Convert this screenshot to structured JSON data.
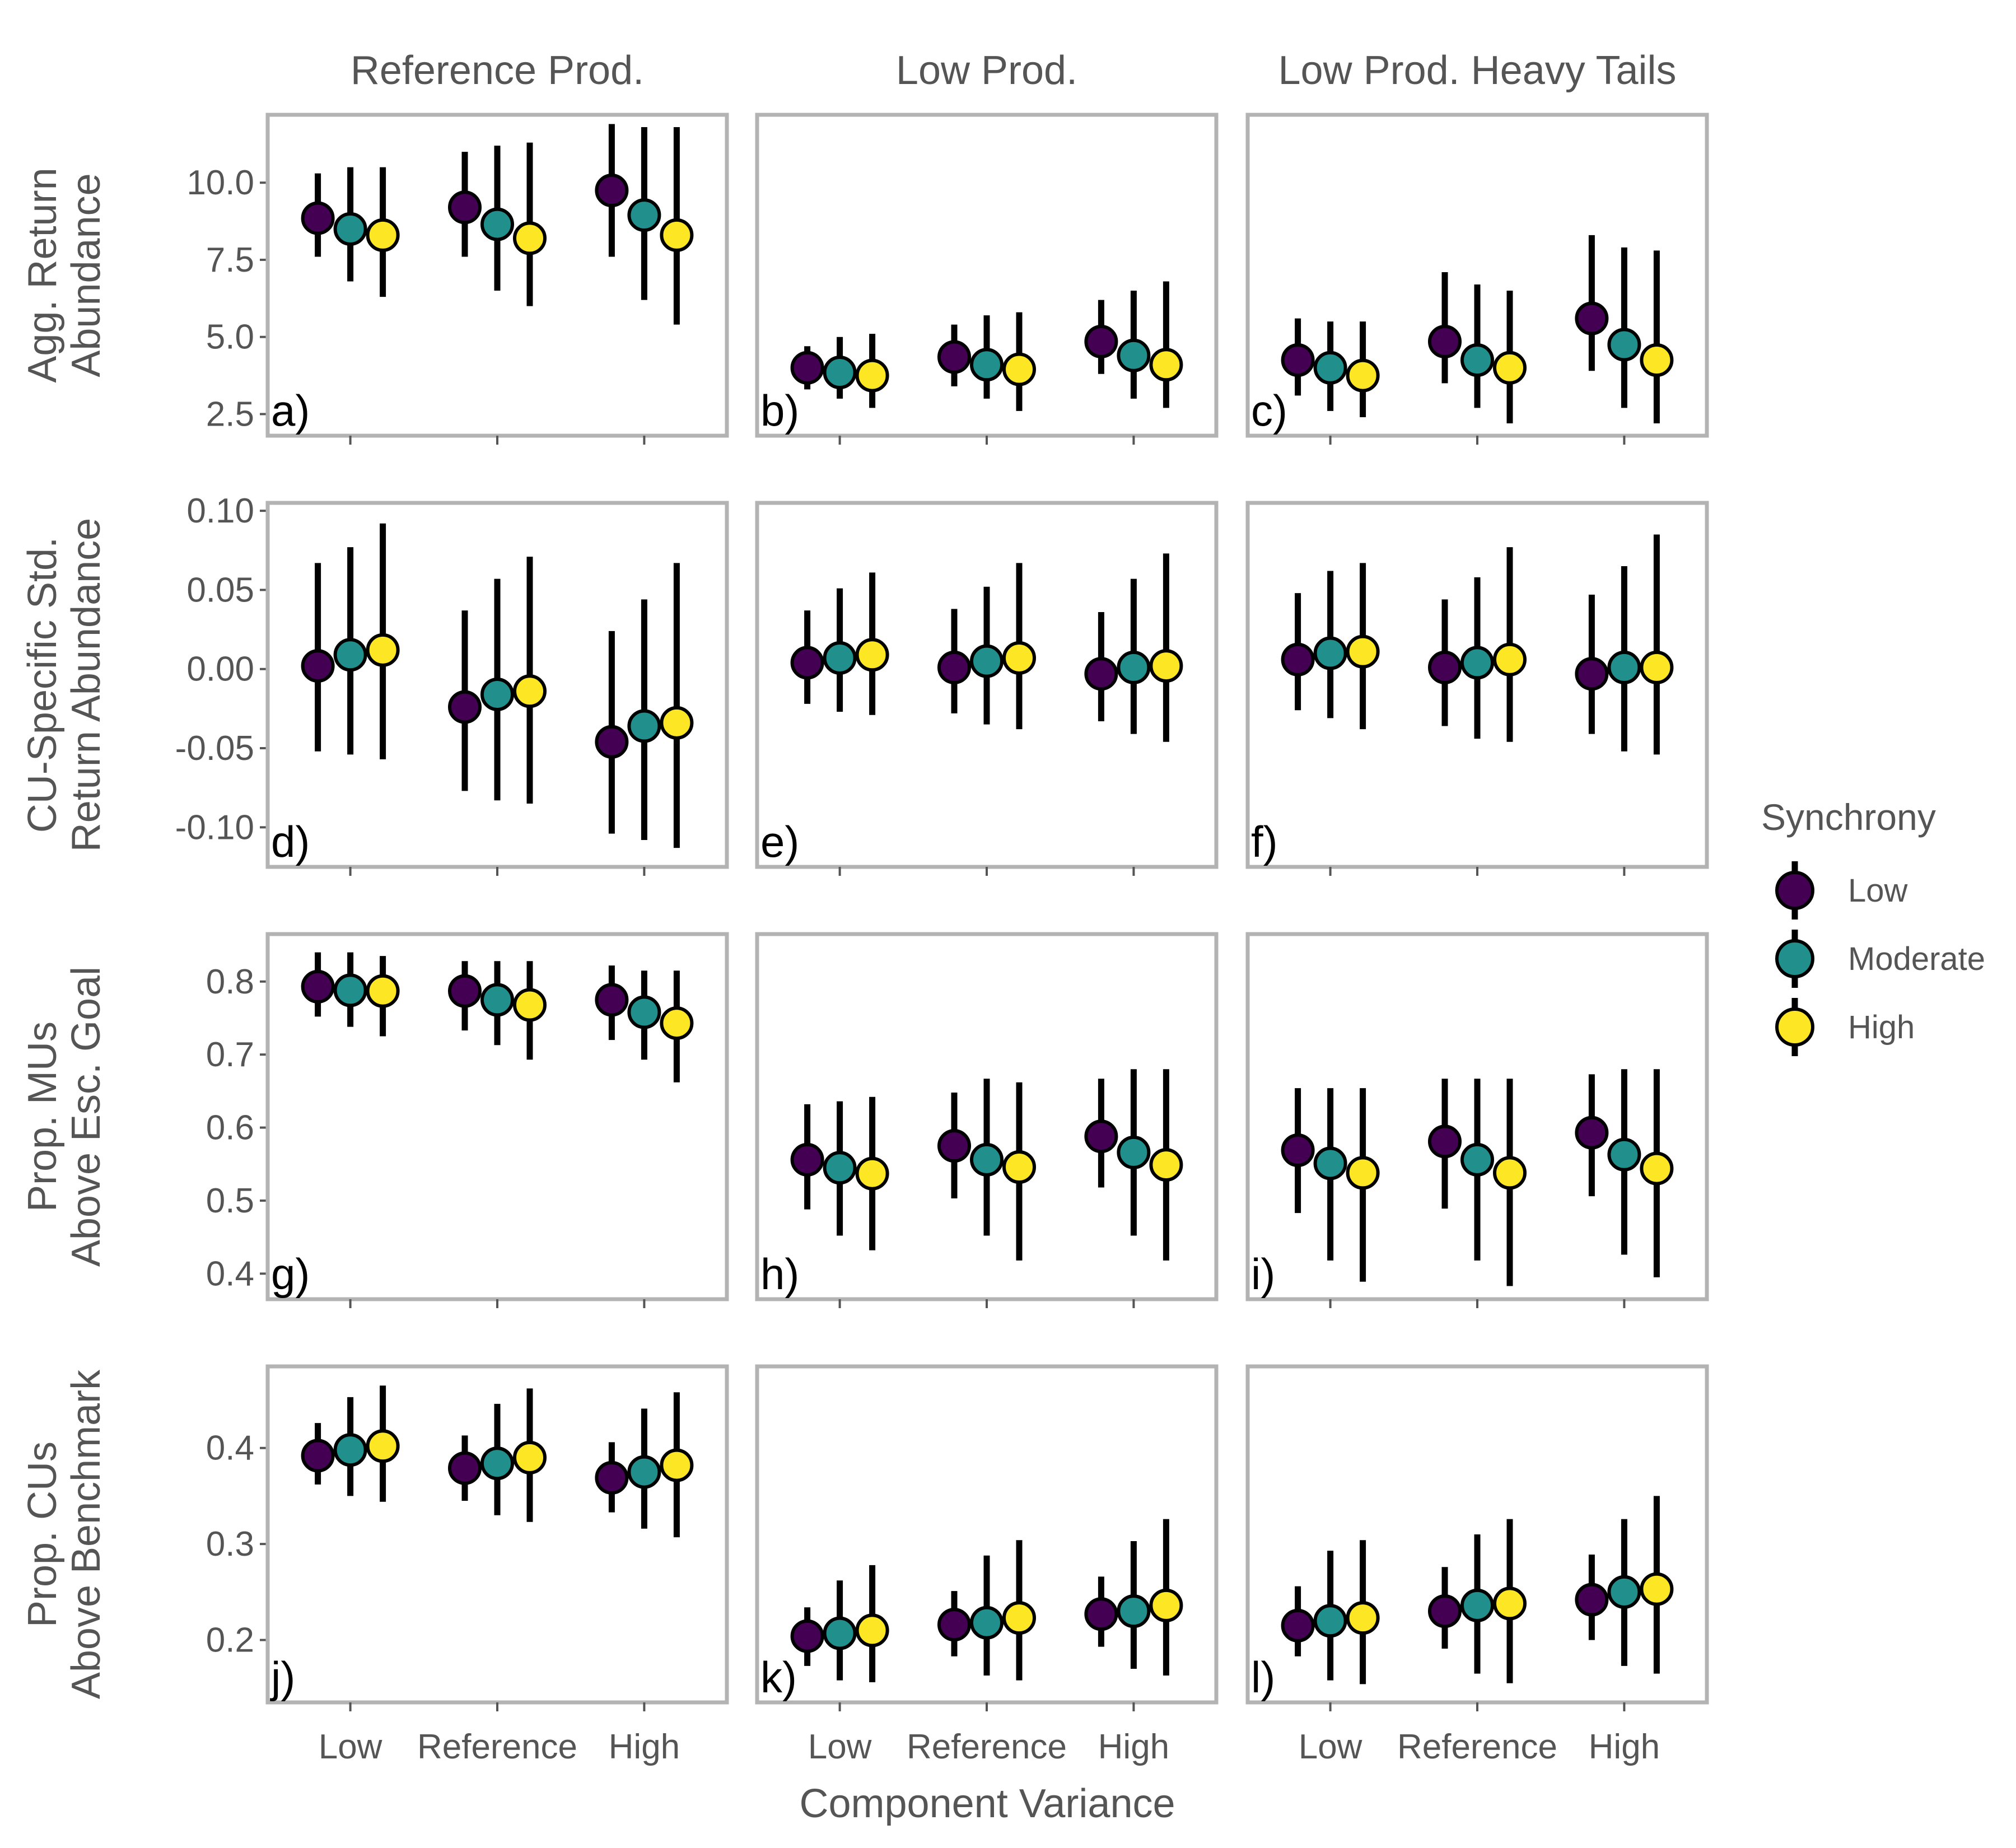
{
  "chart_data": {
    "type": "scatter",
    "subtype": "point-range (median with interval) faceted grid",
    "x_axis": {
      "title": "Component Variance",
      "categories": [
        "Low",
        "Reference",
        "High"
      ]
    },
    "columns": [
      "Reference Prod.",
      "Low Prod.",
      "Low Prod. Heavy Tails"
    ],
    "rows": [
      {
        "ylabel": [
          "Agg. Return",
          "Abundance"
        ],
        "ylim": [
          1.8,
          12.2
        ],
        "ticks": [
          2.5,
          5.0,
          7.5,
          10.0
        ],
        "tick_labels": [
          "2.5",
          "5.0",
          "7.5",
          "10.0"
        ]
      },
      {
        "ylabel": [
          "CU-Specific Std.",
          "Return Abundance"
        ],
        "ylim": [
          -0.125,
          0.105
        ],
        "ticks": [
          -0.1,
          -0.05,
          0.0,
          0.05,
          0.1
        ],
        "tick_labels": [
          "-0.10",
          "-0.05",
          "0.00",
          "0.05",
          "0.10"
        ]
      },
      {
        "ylabel": [
          "Prop. MUs",
          "Above Esc. Goal"
        ],
        "ylim": [
          0.365,
          0.865
        ],
        "ticks": [
          0.4,
          0.5,
          0.6,
          0.7,
          0.8
        ],
        "tick_labels": [
          "0.4",
          "0.5",
          "0.6",
          "0.7",
          "0.8"
        ]
      },
      {
        "ylabel": [
          "Prop. CUs",
          "Above Benchmark"
        ],
        "ylim": [
          0.135,
          0.485
        ],
        "ticks": [
          0.2,
          0.3,
          0.4
        ],
        "tick_labels": [
          "0.2",
          "0.3",
          "0.4"
        ]
      }
    ],
    "legend": {
      "title": "Synchrony",
      "placement": "right",
      "items": [
        {
          "label": "Low",
          "color": "#440154"
        },
        {
          "label": "Moderate",
          "color": "#21908C"
        },
        {
          "label": "High",
          "color": "#FDE725"
        }
      ]
    },
    "panels": [
      {
        "tag": "a)",
        "row": 0,
        "col": 0,
        "points": [
          [
            [
              8.85,
              7.6,
              10.3
            ],
            [
              8.5,
              6.8,
              10.5
            ],
            [
              8.3,
              6.3,
              10.5
            ]
          ],
          [
            [
              9.2,
              7.6,
              11.0
            ],
            [
              8.65,
              6.5,
              11.2
            ],
            [
              8.2,
              6.0,
              11.3
            ]
          ],
          [
            [
              9.75,
              7.6,
              11.9
            ],
            [
              8.95,
              6.2,
              11.8
            ],
            [
              8.3,
              5.4,
              11.8
            ]
          ]
        ]
      },
      {
        "tag": "b)",
        "row": 0,
        "col": 1,
        "points": [
          [
            [
              4.0,
              3.3,
              4.7
            ],
            [
              3.85,
              3.0,
              5.0
            ],
            [
              3.75,
              2.7,
              5.1
            ]
          ],
          [
            [
              4.35,
              3.4,
              5.4
            ],
            [
              4.1,
              3.0,
              5.7
            ],
            [
              3.95,
              2.6,
              5.8
            ]
          ],
          [
            [
              4.85,
              3.8,
              6.2
            ],
            [
              4.4,
              3.0,
              6.5
            ],
            [
              4.1,
              2.7,
              6.8
            ]
          ]
        ]
      },
      {
        "tag": "c)",
        "row": 0,
        "col": 2,
        "points": [
          [
            [
              4.25,
              3.1,
              5.6
            ],
            [
              4.0,
              2.6,
              5.5
            ],
            [
              3.75,
              2.4,
              5.5
            ]
          ],
          [
            [
              4.85,
              3.5,
              7.1
            ],
            [
              4.25,
              2.7,
              6.7
            ],
            [
              4.0,
              2.2,
              6.5
            ]
          ],
          [
            [
              5.6,
              3.9,
              8.3
            ],
            [
              4.75,
              2.7,
              7.9
            ],
            [
              4.25,
              2.2,
              7.8
            ]
          ]
        ]
      },
      {
        "tag": "d)",
        "row": 1,
        "col": 0,
        "points": [
          [
            [
              0.002,
              -0.052,
              0.067
            ],
            [
              0.009,
              -0.054,
              0.077
            ],
            [
              0.012,
              -0.057,
              0.092
            ]
          ],
          [
            [
              -0.024,
              -0.077,
              0.037
            ],
            [
              -0.016,
              -0.083,
              0.057
            ],
            [
              -0.014,
              -0.085,
              0.071
            ]
          ],
          [
            [
              -0.046,
              -0.104,
              0.024
            ],
            [
              -0.036,
              -0.108,
              0.044
            ],
            [
              -0.034,
              -0.113,
              0.067
            ]
          ]
        ]
      },
      {
        "tag": "e)",
        "row": 1,
        "col": 1,
        "points": [
          [
            [
              0.004,
              -0.022,
              0.037
            ],
            [
              0.007,
              -0.027,
              0.051
            ],
            [
              0.009,
              -0.029,
              0.061
            ]
          ],
          [
            [
              0.001,
              -0.028,
              0.038
            ],
            [
              0.005,
              -0.035,
              0.052
            ],
            [
              0.007,
              -0.038,
              0.067
            ]
          ],
          [
            [
              -0.003,
              -0.033,
              0.036
            ],
            [
              0.001,
              -0.041,
              0.057
            ],
            [
              0.002,
              -0.046,
              0.073
            ]
          ]
        ]
      },
      {
        "tag": "f)",
        "row": 1,
        "col": 2,
        "points": [
          [
            [
              0.006,
              -0.026,
              0.048
            ],
            [
              0.01,
              -0.031,
              0.062
            ],
            [
              0.011,
              -0.038,
              0.067
            ]
          ],
          [
            [
              0.001,
              -0.036,
              0.044
            ],
            [
              0.004,
              -0.044,
              0.058
            ],
            [
              0.006,
              -0.046,
              0.077
            ]
          ],
          [
            [
              -0.003,
              -0.041,
              0.047
            ],
            [
              0.001,
              -0.052,
              0.065
            ],
            [
              0.001,
              -0.054,
              0.085
            ]
          ]
        ]
      },
      {
        "tag": "g)",
        "row": 2,
        "col": 0,
        "points": [
          [
            [
              0.793,
              0.752,
              0.84
            ],
            [
              0.788,
              0.738,
              0.84
            ],
            [
              0.787,
              0.725,
              0.835
            ]
          ],
          [
            [
              0.787,
              0.733,
              0.828
            ],
            [
              0.775,
              0.713,
              0.828
            ],
            [
              0.768,
              0.693,
              0.828
            ]
          ],
          [
            [
              0.775,
              0.72,
              0.822
            ],
            [
              0.758,
              0.693,
              0.815
            ],
            [
              0.743,
              0.662,
              0.815
            ]
          ]
        ]
      },
      {
        "tag": "h)",
        "row": 2,
        "col": 1,
        "points": [
          [
            [
              0.556,
              0.488,
              0.632
            ],
            [
              0.545,
              0.452,
              0.636
            ],
            [
              0.537,
              0.432,
              0.642
            ]
          ],
          [
            [
              0.575,
              0.503,
              0.648
            ],
            [
              0.556,
              0.452,
              0.667
            ],
            [
              0.546,
              0.418,
              0.662
            ]
          ],
          [
            [
              0.588,
              0.518,
              0.667
            ],
            [
              0.566,
              0.452,
              0.68
            ],
            [
              0.549,
              0.418,
              0.68
            ]
          ]
        ]
      },
      {
        "tag": "i)",
        "row": 2,
        "col": 2,
        "points": [
          [
            [
              0.569,
              0.483,
              0.654
            ],
            [
              0.551,
              0.418,
              0.654
            ],
            [
              0.538,
              0.389,
              0.654
            ]
          ],
          [
            [
              0.581,
              0.489,
              0.667
            ],
            [
              0.556,
              0.418,
              0.667
            ],
            [
              0.538,
              0.383,
              0.667
            ]
          ],
          [
            [
              0.593,
              0.506,
              0.673
            ],
            [
              0.563,
              0.426,
              0.68
            ],
            [
              0.544,
              0.395,
              0.68
            ]
          ]
        ]
      },
      {
        "tag": "j)",
        "row": 3,
        "col": 0,
        "points": [
          [
            [
              0.392,
              0.362,
              0.426
            ],
            [
              0.398,
              0.35,
              0.453
            ],
            [
              0.402,
              0.344,
              0.465
            ]
          ],
          [
            [
              0.379,
              0.345,
              0.413
            ],
            [
              0.384,
              0.33,
              0.446
            ],
            [
              0.39,
              0.323,
              0.462
            ]
          ],
          [
            [
              0.369,
              0.333,
              0.406
            ],
            [
              0.375,
              0.316,
              0.441
            ],
            [
              0.382,
              0.307,
              0.458
            ]
          ]
        ]
      },
      {
        "tag": "k)",
        "row": 3,
        "col": 1,
        "points": [
          [
            [
              0.204,
              0.173,
              0.234
            ],
            [
              0.207,
              0.158,
              0.262
            ],
            [
              0.21,
              0.156,
              0.278
            ]
          ],
          [
            [
              0.216,
              0.183,
              0.251
            ],
            [
              0.218,
              0.163,
              0.288
            ],
            [
              0.223,
              0.158,
              0.304
            ]
          ],
          [
            [
              0.227,
              0.193,
              0.266
            ],
            [
              0.23,
              0.17,
              0.303
            ],
            [
              0.236,
              0.163,
              0.326
            ]
          ]
        ]
      },
      {
        "tag": "l)",
        "row": 3,
        "col": 2,
        "points": [
          [
            [
              0.215,
              0.183,
              0.256
            ],
            [
              0.22,
              0.158,
              0.293
            ],
            [
              0.223,
              0.154,
              0.304
            ]
          ],
          [
            [
              0.23,
              0.191,
              0.276
            ],
            [
              0.236,
              0.165,
              0.31
            ],
            [
              0.238,
              0.155,
              0.326
            ]
          ],
          [
            [
              0.242,
              0.2,
              0.289
            ],
            [
              0.25,
              0.173,
              0.326
            ],
            [
              0.253,
              0.165,
              0.35
            ]
          ]
        ]
      }
    ]
  }
}
